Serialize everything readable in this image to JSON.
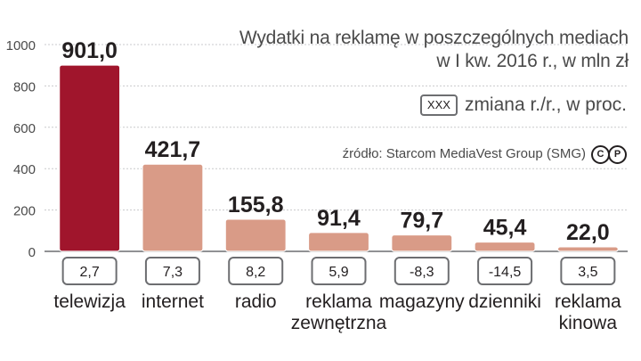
{
  "header": {
    "title_line1": "Wydatki na reklamę w poszczególnych mediach",
    "title_line2": "w I kw. 2016 r., w mln zł",
    "legend_box": "XXX",
    "legend_label": "zmiana r./r., w proc.",
    "source": "źródło: Starcom MediaVest Group (SMG)",
    "copyright_c": "C",
    "copyright_p": "P"
  },
  "colors": {
    "highlight_bar": "#a0152c",
    "bar": "#d99b87",
    "bar_edge": "#ffffff"
  },
  "chart_data": {
    "type": "bar",
    "categories": [
      [
        "telewizja"
      ],
      [
        "internet"
      ],
      [
        "radio"
      ],
      [
        "reklama",
        "zewnętrzna"
      ],
      [
        "magazyny"
      ],
      [
        "dzienniki"
      ],
      [
        "reklama",
        "kinowa"
      ]
    ],
    "values": [
      901.0,
      421.7,
      155.8,
      91.4,
      79.7,
      45.4,
      22.0
    ],
    "value_labels": [
      "901,0",
      "421,7",
      "155,8",
      "91,4",
      "79,7",
      "45,4",
      "22,0"
    ],
    "change_labels": [
      "2,7",
      "7,3",
      "8,2",
      "5,9",
      "-8,3",
      "-14,5",
      "3,5"
    ],
    "highlight_index": 0,
    "yticks": [
      "1000",
      "800",
      "600",
      "400",
      "200",
      "0"
    ],
    "ytick_values": [
      1000,
      800,
      600,
      400,
      200,
      0
    ],
    "ylim": [
      0,
      1000
    ],
    "grid": true
  }
}
